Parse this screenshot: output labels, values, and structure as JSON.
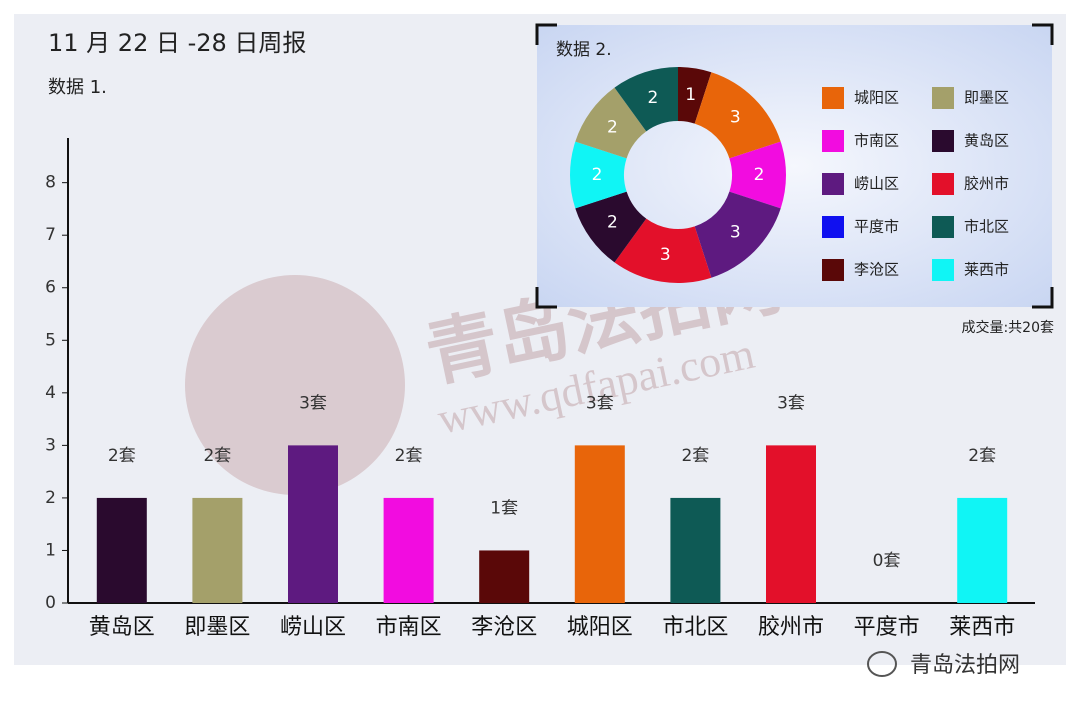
{
  "chart_data": [
    {
      "type": "bar",
      "title": "11 月 22 日 -28 日周报",
      "subtitle": "数据 1.",
      "categories": [
        "黄岛区",
        "即墨区",
        "崂山区",
        "市南区",
        "李沧区",
        "城阳区",
        "市北区",
        "胶州市",
        "平度市",
        "莱西市"
      ],
      "values": [
        2,
        2,
        3,
        2,
        1,
        3,
        2,
        3,
        0,
        2
      ],
      "value_labels": [
        "2套",
        "2套",
        "3套",
        "2套",
        "1套",
        "3套",
        "2套",
        "3套",
        "0套",
        "2套"
      ],
      "colors": [
        "#2a0a2e",
        "#a4a06a",
        "#5e1a80",
        "#f20ce0",
        "#5a0808",
        "#e8650a",
        "#0e5a55",
        "#e3102a",
        "#1010f0",
        "#10f5f5"
      ],
      "ylim": [
        0,
        8.85
      ],
      "yticks": [
        0,
        1,
        2,
        3,
        4,
        5,
        6,
        7,
        8
      ]
    },
    {
      "type": "pie",
      "title": "数据 2.",
      "note": "成交量:共20套",
      "categories": [
        "李沧区",
        "城阳区",
        "市南区",
        "崂山区",
        "胶州市",
        "平度市",
        "黄岛区",
        "莱西市",
        "即墨区",
        "市北区"
      ],
      "values": [
        1,
        3,
        2,
        3,
        3,
        0,
        2,
        2,
        2,
        2
      ],
      "colors": [
        "#5a0808",
        "#e8650a",
        "#f20ce0",
        "#5e1a80",
        "#e3102a",
        "#1010f0",
        "#2a0a2e",
        "#10f5f5",
        "#a4a06a",
        "#0e5a55"
      ]
    }
  ],
  "watermark": {
    "name": "青岛法拍网",
    "url": "www.qdfapai.com"
  },
  "footer": "青岛法拍网"
}
